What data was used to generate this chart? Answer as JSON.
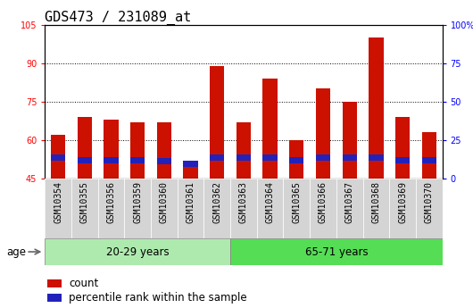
{
  "title": "GDS473 / 231089_at",
  "categories": [
    "GSM10354",
    "GSM10355",
    "GSM10356",
    "GSM10359",
    "GSM10360",
    "GSM10361",
    "GSM10362",
    "GSM10363",
    "GSM10364",
    "GSM10365",
    "GSM10366",
    "GSM10367",
    "GSM10368",
    "GSM10369",
    "GSM10370"
  ],
  "count_values": [
    62,
    69,
    68,
    67,
    67,
    50,
    89,
    67,
    84,
    60,
    80,
    75,
    100,
    69,
    63
  ],
  "percentile_bottom": [
    52.0,
    51.0,
    51.0,
    51.0,
    50.5,
    49.5,
    52.0,
    52.0,
    52.0,
    51.0,
    52.0,
    52.0,
    52.0,
    51.0,
    51.0
  ],
  "percentile_height": [
    2.5,
    2.5,
    2.5,
    2.5,
    2.5,
    2.5,
    2.5,
    2.5,
    2.5,
    2.5,
    2.5,
    2.5,
    2.5,
    2.5,
    2.5
  ],
  "bar_bottom": 45,
  "ymin": 45,
  "ymax": 105,
  "yticks_left": [
    45,
    60,
    75,
    90,
    105
  ],
  "yticks_right_labels": [
    "0",
    "25",
    "50",
    "75",
    "100%"
  ],
  "yticks_right_pos": [
    45,
    60,
    75,
    90,
    105
  ],
  "group1_label": "20-29 years",
  "group2_label": "65-71 years",
  "group1_count": 7,
  "group2_count": 8,
  "group1_color": "#aeeaae",
  "group2_color": "#55dd55",
  "bar_color_red": "#cc1100",
  "bar_color_blue": "#2222bb",
  "age_label": "age",
  "legend_count": "count",
  "legend_percentile": "percentile rank within the sample",
  "title_fontsize": 11,
  "tick_fontsize": 7,
  "label_fontsize": 8.5,
  "grid_yticks": [
    60,
    75,
    90
  ],
  "bar_width": 0.55
}
